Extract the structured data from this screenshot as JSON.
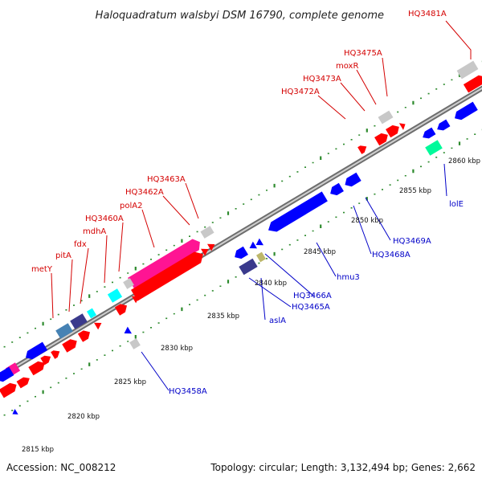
{
  "title": "Haloquadratum walsbyi DSM 16790, complete genome",
  "footer": {
    "accession": "Accession: NC_008212",
    "summary": "Topology: circular; Length: 3,132,494 bp; Genes: 2,662"
  },
  "colors": {
    "backbone": "#8a8a8a",
    "tick": "#2e8b2e",
    "forward_label": "#d40000",
    "reverse_label": "#0000c8",
    "gene_red": "#ff0000",
    "gene_blue": "#0000ff",
    "gene_pink": "#ff1493",
    "gene_grey": "#c8c8c8",
    "gene_navy": "#3a3a8c",
    "gene_cyan": "#00ffff",
    "gene_steel": "#4682b4",
    "gene_olive": "#bdb76b",
    "gene_teal": "#00fa9a"
  },
  "scale": [
    "2815 kbp",
    "2820 kbp",
    "2825 kbp",
    "2830 kbp",
    "2835 kbp",
    "2840 kbp",
    "2845 kbp",
    "2850 kbp",
    "2855 kbp",
    "2860 kbp"
  ],
  "forward_labels": [
    "HQ3481A",
    "HQ3475A",
    "moxR",
    "HQ3473A",
    "HQ3472A",
    "HQ3463A",
    "HQ3462A",
    "polA2",
    "HQ3460A",
    "mdhA",
    "fdx",
    "pitA",
    "metY"
  ],
  "reverse_labels": [
    "lolE",
    "HQ3469A",
    "HQ3468A",
    "hmu3",
    "HQ3466A",
    "HQ3465A",
    "aslA",
    "HQ3458A"
  ]
}
